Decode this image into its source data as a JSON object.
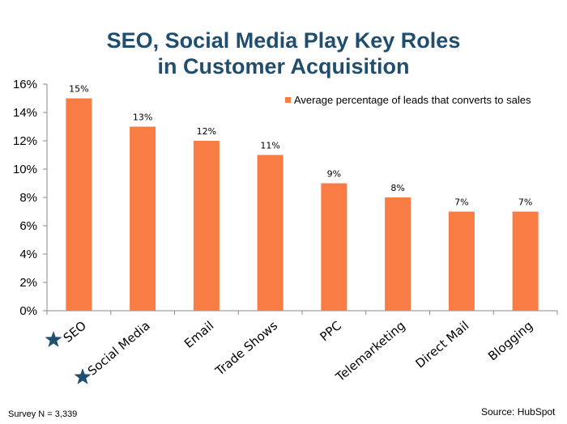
{
  "chart_data": {
    "type": "bar",
    "title_lines": [
      "SEO, Social Media Play Key Roles",
      "in Customer Acquisition"
    ],
    "categories": [
      "SEO",
      "Social Media",
      "Email",
      "Trade Shows",
      "PPC",
      "Telemarketing",
      "Direct Mail",
      "Blogging"
    ],
    "series": [
      {
        "name": "Average percentage of leads that converts to sales",
        "values": [
          15,
          13,
          12,
          11,
          9,
          8,
          7,
          7
        ]
      }
    ],
    "data_labels": [
      "15%",
      "13%",
      "12%",
      "11%",
      "9%",
      "8%",
      "7%",
      "7%"
    ],
    "ylim": [
      0,
      16
    ],
    "y_ticks": [
      "0%",
      "2%",
      "4%",
      "6%",
      "8%",
      "10%",
      "12%",
      "14%",
      "16%"
    ],
    "grid": false,
    "legend_position": "top-right",
    "starred_categories": [
      "SEO",
      "Social Media"
    ]
  },
  "colors": {
    "bar": "#f97c45",
    "title": "#1f4e6e",
    "star": "#1f4e6e",
    "axis": "#888888"
  },
  "footer": {
    "survey": "Survey N = 3,339",
    "source": "Source: HubSpot"
  }
}
